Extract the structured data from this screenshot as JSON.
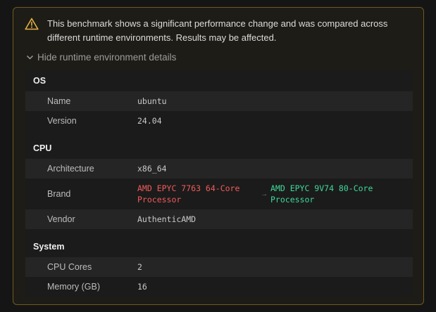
{
  "warning": {
    "message": "This benchmark shows a significant performance change and was compared across different runtime environments. Results may be affected."
  },
  "toggle": "Hide runtime environment details",
  "sections": [
    {
      "title": "OS",
      "rows": [
        {
          "label": "Name",
          "value": "ubuntu"
        },
        {
          "label": "Version",
          "value": "24.04"
        }
      ]
    },
    {
      "title": "CPU",
      "rows": [
        {
          "label": "Architecture",
          "value": "x86_64"
        },
        {
          "label": "Brand",
          "old": "AMD EPYC 7763 64-Core Processor",
          "arrow": "→",
          "new": "AMD EPYC 9V74 80-Core Processor"
        },
        {
          "label": "Vendor",
          "value": "AuthenticAMD"
        }
      ]
    },
    {
      "title": "System",
      "rows": [
        {
          "label": "CPU Cores",
          "value": "2"
        },
        {
          "label": "Memory (GB)",
          "value": "16"
        }
      ]
    }
  ]
}
